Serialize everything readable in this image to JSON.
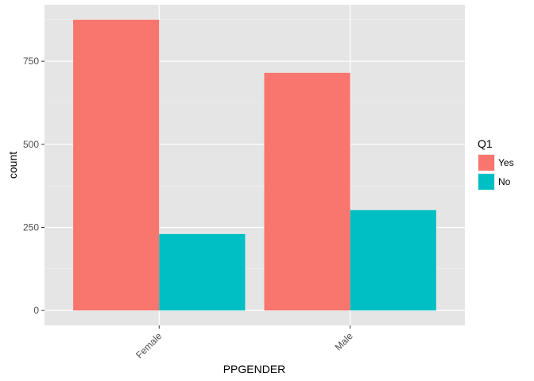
{
  "chart_data": {
    "type": "bar",
    "title": "",
    "xlabel": "PPGENDER",
    "ylabel": "count",
    "categories": [
      "Female",
      "Male"
    ],
    "series": [
      {
        "name": "Yes",
        "values": [
          875,
          715
        ]
      },
      {
        "name": "No",
        "values": [
          230,
          302
        ]
      }
    ],
    "ylim": [
      -45,
      920
    ],
    "yticks": [
      0,
      250,
      500,
      750
    ],
    "ytick_labels": [
      "0",
      "250",
      "500",
      "750"
    ],
    "legend": {
      "title": "Q1",
      "position": "right"
    },
    "grid": true,
    "colors": {
      "Yes": "#F8766D",
      "No": "#00BFC4",
      "panel_background": "#E5E5E5",
      "grid_major": "#FFFFFF",
      "grid_minor": "#F2F2F2",
      "tick_text": "#4D4D4D"
    }
  }
}
